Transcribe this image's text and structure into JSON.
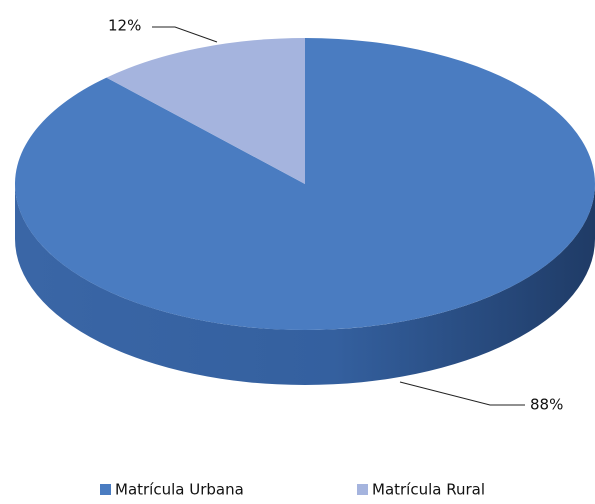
{
  "chart_data": {
    "type": "pie",
    "categories": [
      "Matrícula Urbana",
      "Matrícula Rural"
    ],
    "values": [
      88,
      12
    ],
    "value_labels": [
      "88%",
      "12%"
    ],
    "colors": [
      "#4a7cc1",
      "#a5b4de"
    ],
    "legend": "bottom"
  }
}
